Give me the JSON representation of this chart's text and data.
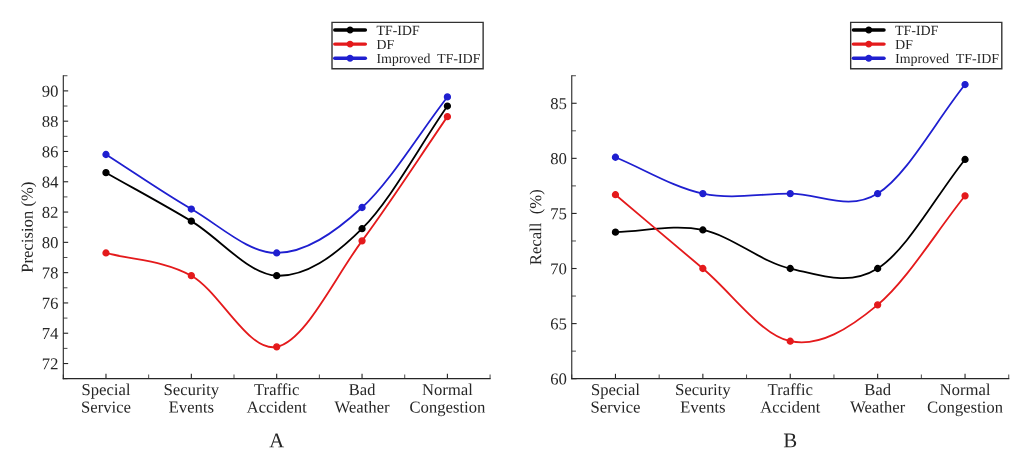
{
  "chart_data": [
    {
      "type": "line",
      "xlabel": "A",
      "ylabel": "Precision (%)",
      "categories": [
        "Special\nService",
        "Security\nEvents",
        "Traffic\nAccident",
        "Bad\nWeather",
        "Normal\nCongestion"
      ],
      "series": [
        {
          "name": "TF-IDF",
          "color": "#000000",
          "values": [
            84.6,
            81.4,
            77.8,
            80.9,
            89.0
          ]
        },
        {
          "name": "DF",
          "color": "#e41a1c",
          "values": [
            79.3,
            77.8,
            73.1,
            80.1,
            88.3
          ]
        },
        {
          "name": "Improved  TF-IDF",
          "color": "#1f1fd0",
          "values": [
            85.8,
            82.2,
            79.3,
            82.3,
            89.6
          ]
        }
      ],
      "ylim": [
        71,
        91
      ],
      "yticks": [
        72,
        74,
        76,
        78,
        80,
        82,
        84,
        86,
        88,
        90
      ],
      "grid": false,
      "legend": "top right",
      "marker": "circle",
      "line_style": "solid"
    },
    {
      "type": "line",
      "xlabel": "B",
      "ylabel": "Recall  (%)",
      "categories": [
        "Special\nService",
        "Security\nEvents",
        "Traffic\nAccident",
        "Bad\nWeather",
        "Normal\nCongestion"
      ],
      "series": [
        {
          "name": "TF-IDF",
          "color": "#000000",
          "values": [
            73.3,
            73.5,
            70.0,
            70.0,
            79.9
          ]
        },
        {
          "name": "DF",
          "color": "#e41a1c",
          "values": [
            76.7,
            70.0,
            63.4,
            66.7,
            76.6
          ]
        },
        {
          "name": "Improved  TF-IDF",
          "color": "#1f1fd0",
          "values": [
            80.1,
            76.8,
            76.8,
            76.8,
            86.7
          ]
        }
      ],
      "ylim": [
        60,
        87.5
      ],
      "yticks": [
        60,
        65,
        70,
        75,
        80,
        85
      ],
      "grid": false,
      "legend": "top right",
      "marker": "circle",
      "line_style": "solid"
    }
  ]
}
